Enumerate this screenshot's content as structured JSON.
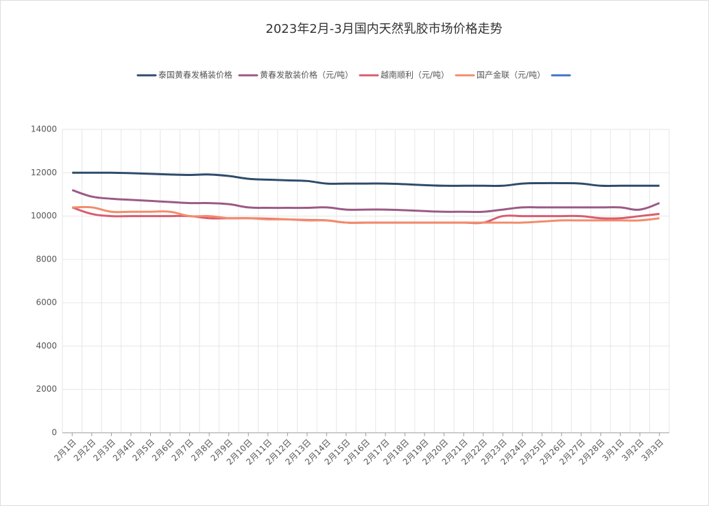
{
  "chart_data": {
    "type": "line",
    "title": "2023年2月-3月国内天然乳胶市场价格走势",
    "categories": [
      "2月1日",
      "2月2日",
      "2月3日",
      "2月4日",
      "2月5日",
      "2月6日",
      "2月7日",
      "2月8日",
      "2月9日",
      "2月10日",
      "2月11日",
      "2月12日",
      "2月13日",
      "2月14日",
      "2月15日",
      "2月16日",
      "2月17日",
      "2月18日",
      "2月19日",
      "2月20日",
      "2月21日",
      "2月22日",
      "2月23日",
      "2月24日",
      "2月25日",
      "2月26日",
      "2月27日",
      "2月28日",
      "3月1日",
      "3月2日",
      "3月3日"
    ],
    "series": [
      {
        "name": "泰国黄春发桶装价格",
        "color": "#2f4b6c",
        "values": [
          12000,
          12000,
          12000,
          11980,
          11950,
          11920,
          11900,
          11920,
          11850,
          11720,
          11680,
          11650,
          11620,
          11500,
          11500,
          11500,
          11500,
          11470,
          11430,
          11400,
          11400,
          11400,
          11400,
          11500,
          11520,
          11520,
          11500,
          11400,
          11400,
          11400,
          11400
        ]
      },
      {
        "name": "黄春发散装价格（元/吨）",
        "color": "#9b5a84",
        "values": [
          11200,
          10900,
          10800,
          10750,
          10700,
          10650,
          10600,
          10600,
          10550,
          10400,
          10380,
          10380,
          10380,
          10400,
          10300,
          10300,
          10300,
          10270,
          10230,
          10200,
          10200,
          10200,
          10300,
          10400,
          10400,
          10400,
          10400,
          10400,
          10400,
          10300,
          10600
        ]
      },
      {
        "name": "越南顺利（元/吨）",
        "color": "#d95c6f",
        "values": [
          10400,
          10100,
          10000,
          10000,
          10000,
          10000,
          10000,
          9900,
          9900,
          9900,
          9880,
          9850,
          9820,
          9800,
          9700,
          9700,
          9700,
          9700,
          9700,
          9700,
          9700,
          9700,
          10000,
          10000,
          10000,
          10000,
          10000,
          9900,
          9900,
          10000,
          10100
        ]
      },
      {
        "name": "国产金联（元/吨）",
        "color": "#f28c6b",
        "values": [
          10400,
          10400,
          10200,
          10200,
          10200,
          10200,
          10000,
          10000,
          9900,
          9900,
          9850,
          9850,
          9800,
          9800,
          9700,
          9700,
          9700,
          9700,
          9700,
          9700,
          9700,
          9700,
          9700,
          9700,
          9750,
          9800,
          9800,
          9800,
          9800,
          9800,
          9900
        ]
      }
    ],
    "ylim": [
      0,
      14000
    ],
    "yticks": [
      0,
      2000,
      4000,
      6000,
      8000,
      10000,
      12000,
      14000
    ],
    "grid": true
  }
}
